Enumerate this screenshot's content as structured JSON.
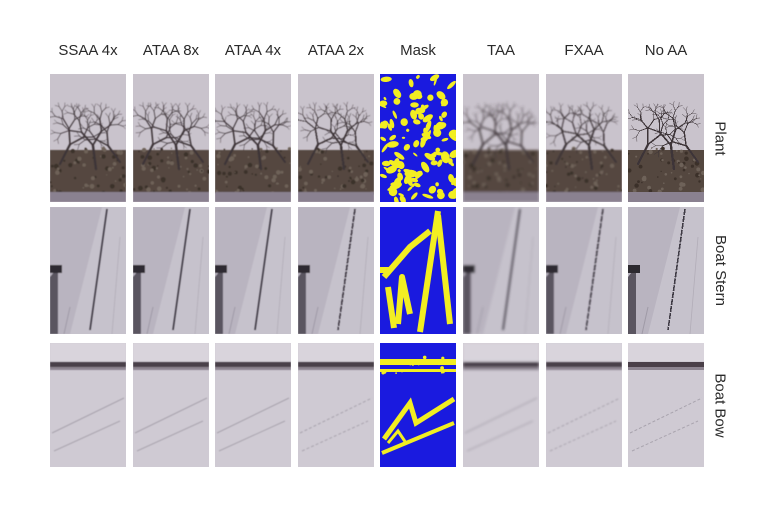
{
  "figure": {
    "columns": [
      {
        "label": "SSAA 4x",
        "kind": "photo",
        "variant": "ssaa4"
      },
      {
        "label": "ATAA 8x",
        "kind": "photo",
        "variant": "ataa8"
      },
      {
        "label": "ATAA 4x",
        "kind": "photo",
        "variant": "ataa4"
      },
      {
        "label": "ATAA 2x",
        "kind": "photo",
        "variant": "ataa2"
      },
      {
        "label": "Mask",
        "kind": "mask",
        "variant": "mask"
      },
      {
        "label": "TAA",
        "kind": "photo",
        "variant": "taa"
      },
      {
        "label": "FXAA",
        "kind": "photo",
        "variant": "fxaa"
      },
      {
        "label": "No AA",
        "kind": "photo",
        "variant": "noaa"
      }
    ],
    "rows": [
      {
        "label": "Plant",
        "scene": "plant"
      },
      {
        "label": "Boat Stern",
        "scene": "stern"
      },
      {
        "label": "Boat Bow",
        "scene": "bow"
      }
    ],
    "colors": {
      "mask_background": "#1a1adf",
      "mask_foreground": "#f2ee22",
      "sky": "#c9c3cc",
      "hull": "#c6c2cc",
      "branch": "#3d3438",
      "foliage": "#54473f"
    }
  }
}
